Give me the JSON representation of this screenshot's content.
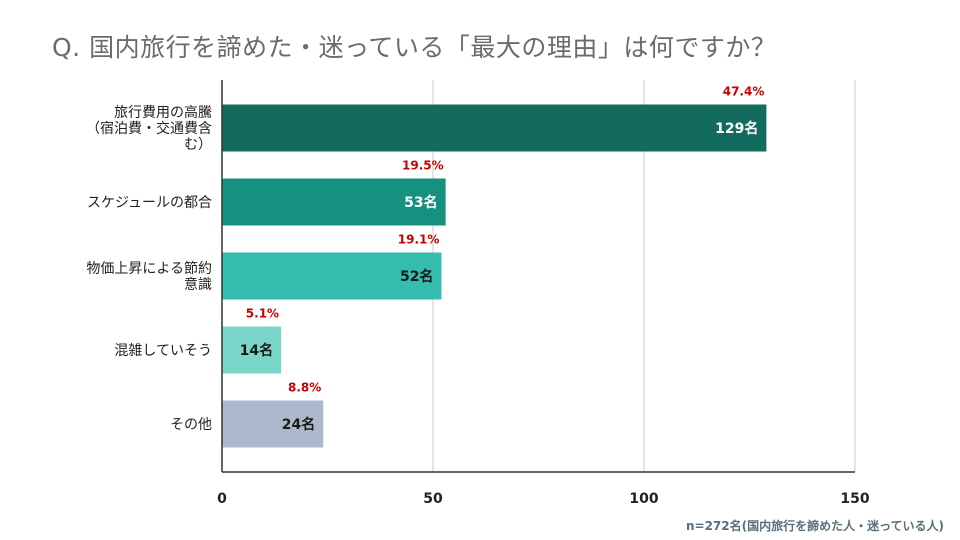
{
  "title": "Q. 国内旅行を諦めた・迷っている「最大の理由」は何ですか？",
  "footnote": "n=272名(国内旅行を諦めた人・迷っている人)",
  "colors": {
    "bars": [
      "#136b5d",
      "#17917f",
      "#34bcaf",
      "#7ad6c8",
      "#adb8cc"
    ],
    "bar_label": [
      "#ffffff",
      "#ffffff",
      "#1a1a1a",
      "#1a1a1a",
      "#1a1a1a"
    ],
    "percent_label": "#cc0000",
    "grid": "#c9c9c9",
    "axis": "#333333"
  },
  "chart_data": {
    "type": "bar",
    "orientation": "horizontal",
    "title": "Q. 国内旅行を諦めた・迷っている「最大の理由」は何ですか？",
    "categories": [
      [
        "旅行費用の高騰",
        "（宿泊費・交通費含",
        "む）"
      ],
      [
        "スケジュールの都合"
      ],
      [
        "物価上昇による節約",
        "意識"
      ],
      [
        "混雑していそう"
      ],
      [
        "その他"
      ]
    ],
    "values": [
      129,
      53,
      52,
      14,
      24
    ],
    "value_labels": [
      "129名",
      "53名",
      "52名",
      "14名",
      "24名"
    ],
    "percent_labels": [
      "47.4%",
      "19.5%",
      "19.1%",
      "5.1%",
      "8.8%"
    ],
    "xlim": [
      0,
      150
    ],
    "xticks": [
      0,
      50,
      100,
      150
    ],
    "grid": true,
    "legend": "none"
  }
}
